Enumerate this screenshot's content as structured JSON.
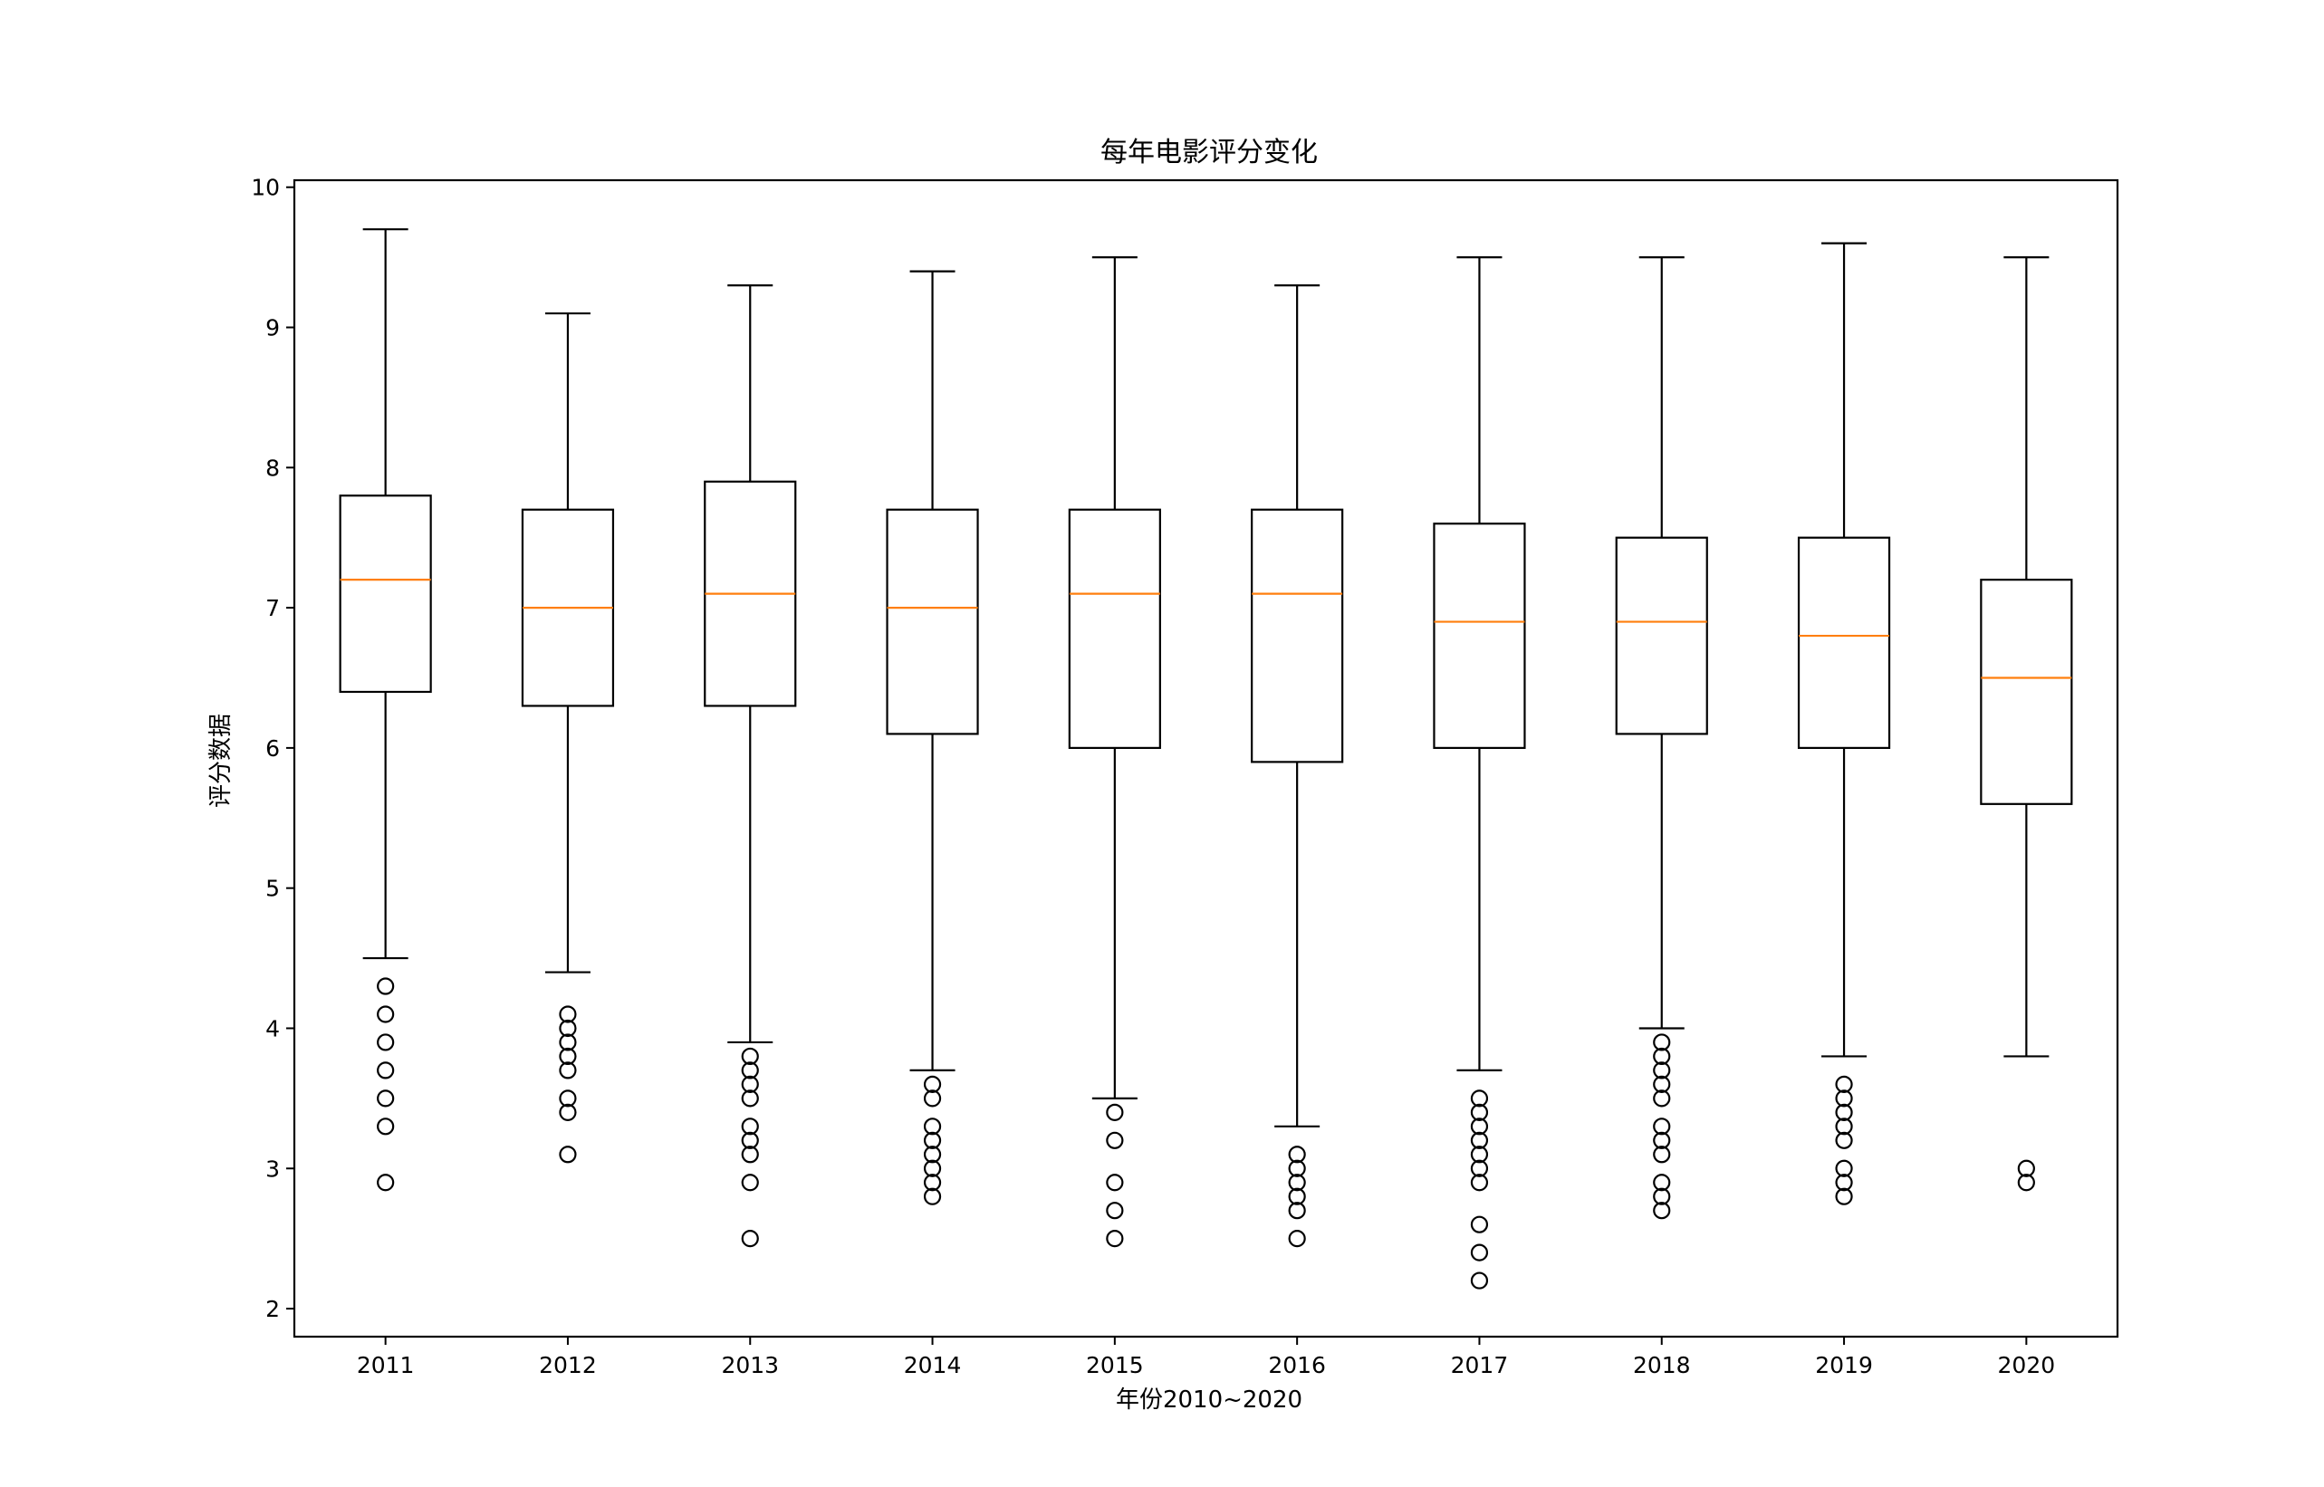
{
  "chart_data": {
    "type": "boxplot",
    "title": "每年电影评分变化",
    "xlabel": "年份2010~2020",
    "ylabel": "评分数据",
    "ylim": [
      1.8,
      10.05
    ],
    "yticks": [
      2,
      3,
      4,
      5,
      6,
      7,
      8,
      9,
      10
    ],
    "categories": [
      "2011",
      "2012",
      "2013",
      "2014",
      "2015",
      "2016",
      "2017",
      "2018",
      "2019",
      "2020"
    ],
    "boxes": [
      {
        "category": "2011",
        "whisker_low": 4.5,
        "q1": 6.4,
        "median": 7.2,
        "q3": 7.8,
        "whisker_high": 9.7,
        "outliers": [
          4.3,
          4.1,
          3.9,
          3.7,
          3.5,
          3.3,
          2.9
        ]
      },
      {
        "category": "2012",
        "whisker_low": 4.4,
        "q1": 6.3,
        "median": 7.0,
        "q3": 7.7,
        "whisker_high": 9.1,
        "outliers": [
          4.1,
          4.0,
          3.9,
          3.8,
          3.7,
          3.5,
          3.4,
          3.1
        ]
      },
      {
        "category": "2013",
        "whisker_low": 3.9,
        "q1": 6.3,
        "median": 7.1,
        "q3": 7.9,
        "whisker_high": 9.3,
        "outliers": [
          3.8,
          3.7,
          3.6,
          3.5,
          3.3,
          3.2,
          3.1,
          2.9,
          2.5
        ]
      },
      {
        "category": "2014",
        "whisker_low": 3.7,
        "q1": 6.1,
        "median": 7.0,
        "q3": 7.7,
        "whisker_high": 9.4,
        "outliers": [
          3.6,
          3.5,
          3.3,
          3.2,
          3.1,
          3.0,
          2.9,
          2.8
        ]
      },
      {
        "category": "2015",
        "whisker_low": 3.5,
        "q1": 6.0,
        "median": 7.1,
        "q3": 7.7,
        "whisker_high": 9.5,
        "outliers": [
          3.4,
          3.2,
          2.9,
          2.7,
          2.5
        ]
      },
      {
        "category": "2016",
        "whisker_low": 3.3,
        "q1": 5.9,
        "median": 7.1,
        "q3": 7.7,
        "whisker_high": 9.3,
        "outliers": [
          3.1,
          3.0,
          2.9,
          2.8,
          2.7,
          2.5
        ]
      },
      {
        "category": "2017",
        "whisker_low": 3.7,
        "q1": 6.0,
        "median": 6.9,
        "q3": 7.6,
        "whisker_high": 9.5,
        "outliers": [
          3.5,
          3.4,
          3.3,
          3.2,
          3.1,
          3.0,
          2.9,
          2.6,
          2.4,
          2.2
        ]
      },
      {
        "category": "2018",
        "whisker_low": 4.0,
        "q1": 6.1,
        "median": 6.9,
        "q3": 7.5,
        "whisker_high": 9.5,
        "outliers": [
          3.9,
          3.8,
          3.7,
          3.6,
          3.5,
          3.3,
          3.2,
          3.1,
          2.9,
          2.8,
          2.7
        ]
      },
      {
        "category": "2019",
        "whisker_low": 3.8,
        "q1": 6.0,
        "median": 6.8,
        "q3": 7.5,
        "whisker_high": 9.6,
        "outliers": [
          3.6,
          3.5,
          3.4,
          3.3,
          3.2,
          3.0,
          2.9,
          2.8
        ]
      },
      {
        "category": "2020",
        "whisker_low": 3.8,
        "q1": 5.6,
        "median": 6.5,
        "q3": 7.2,
        "whisker_high": 9.5,
        "outliers": [
          3.0,
          2.9
        ]
      }
    ],
    "grid": false,
    "colors": {
      "box": "#000000",
      "median": "#ff7f0e",
      "outlier": "#000000"
    }
  }
}
